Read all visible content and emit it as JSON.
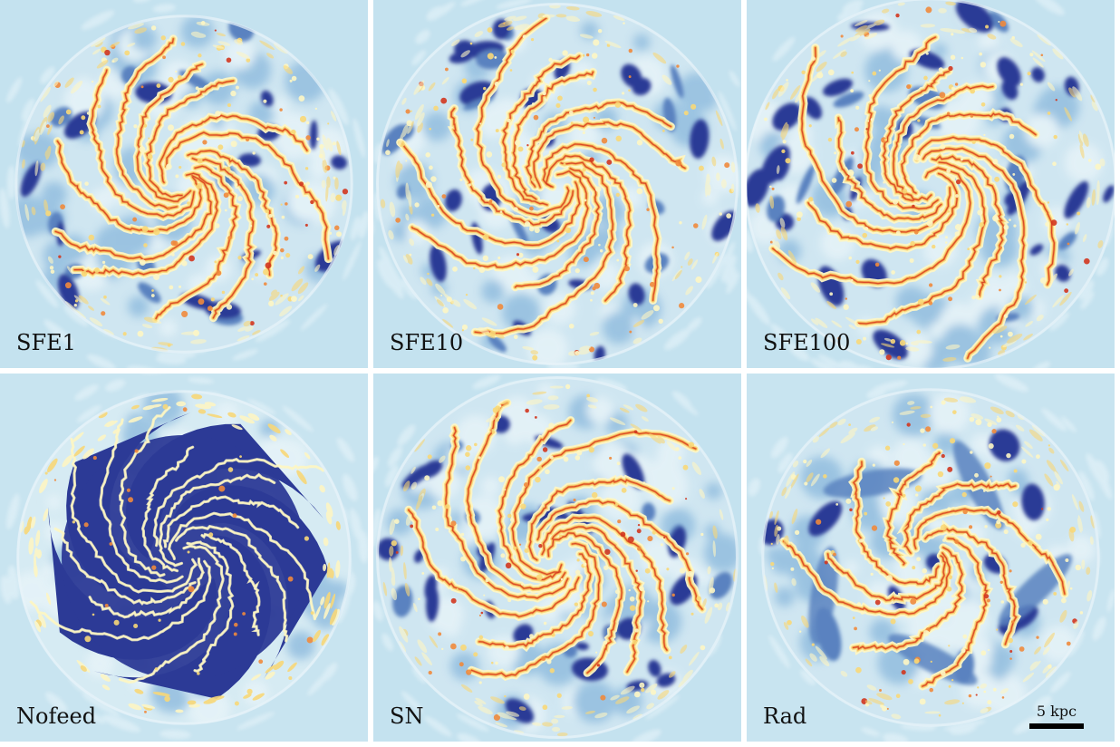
{
  "panels": [
    {
      "label": "SFE1",
      "variant": "sfe1"
    },
    {
      "label": "SFE10",
      "variant": "sfe10"
    },
    {
      "label": "SFE100",
      "variant": "sfe100"
    },
    {
      "label": "Nofeed",
      "variant": "nofeed"
    },
    {
      "label": "SN",
      "variant": "sn"
    },
    {
      "label": "Rad",
      "variant": "rad"
    }
  ],
  "scalebar": {
    "label": "5 kpc"
  },
  "colors": {
    "background": "#bfe0ee",
    "void": "#2c3a96",
    "void_light": "#5a82c0",
    "mid_blue": "#93bedf",
    "pale": "#fdf6c4",
    "yellow": "#f8d878",
    "orange": "#f08a3c",
    "red": "#d2361f"
  }
}
